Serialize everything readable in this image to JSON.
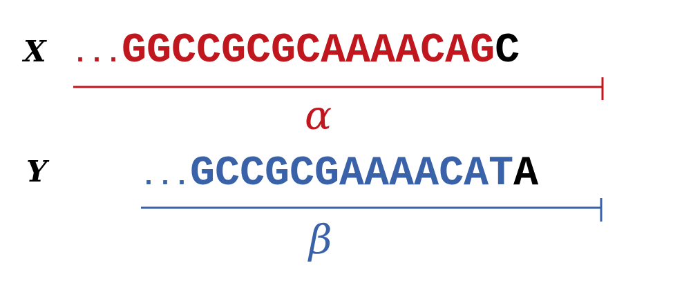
{
  "rows": {
    "x": {
      "label": "X",
      "ellipsis": "...",
      "sequence": "GGCCGCGCAAAACAG",
      "terminal": "C",
      "greek": "α",
      "color": "#c0161d"
    },
    "y": {
      "label": "Y",
      "ellipsis": "...",
      "sequence": "GCCGCGAAAACAT",
      "terminal": "A",
      "greek": "β",
      "color": "#3a62a8"
    }
  },
  "terminal_color": "#000000"
}
